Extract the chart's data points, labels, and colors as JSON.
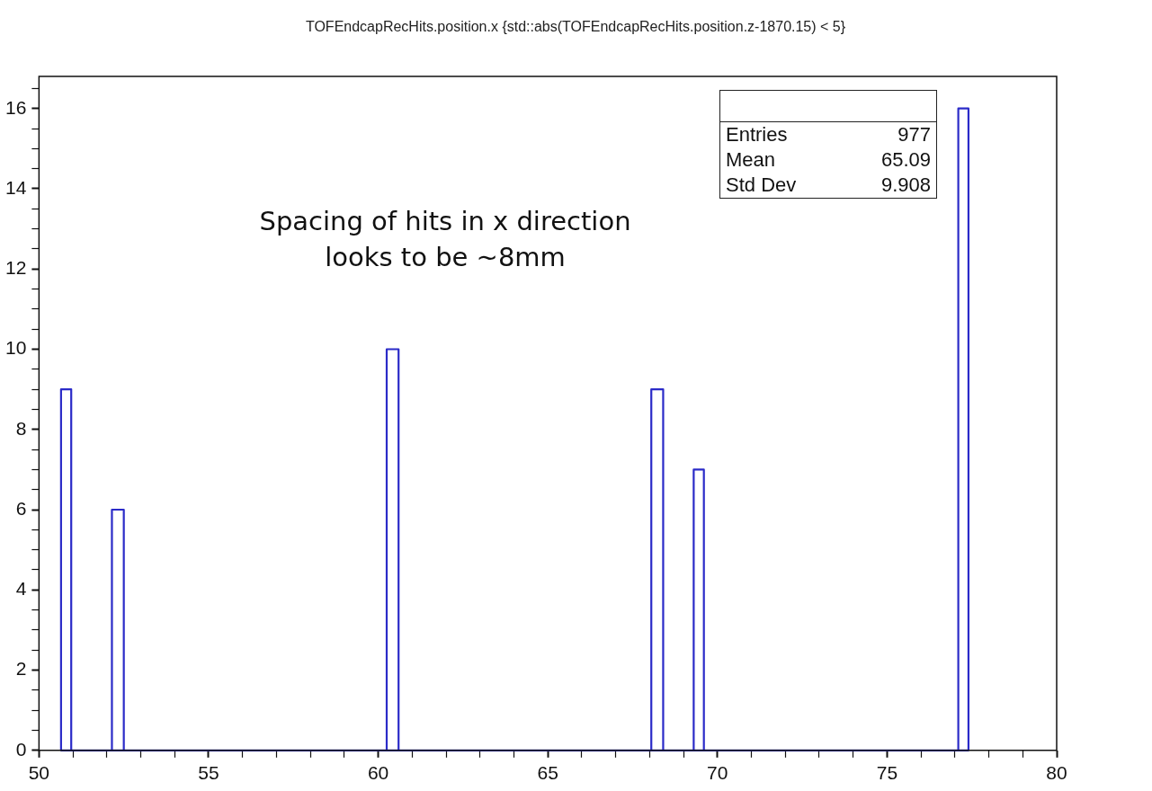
{
  "chart_data": {
    "type": "histogram",
    "title": "TOFEndcapRecHits.position.x {std::abs(TOFEndcapRecHits.position.z-1870.15) < 5}",
    "bins": [
      50.65,
      50.95,
      52.15,
      52.5,
      60.25,
      60.6,
      68.05,
      68.4,
      69.3,
      69.6,
      77.1,
      77.4
    ],
    "values": [
      9,
      0,
      6,
      0,
      10,
      0,
      9,
      0,
      7,
      0,
      16
    ],
    "color": "#2b2bc8",
    "xlim": [
      50,
      80
    ],
    "xticks": [
      50,
      {
        "value": 51,
        "label": null
      },
      {
        "value": 52,
        "label": null
      },
      {
        "value": 53,
        "label": null
      },
      {
        "value": 54,
        "label": null
      },
      55,
      {
        "value": 56,
        "label": null
      },
      {
        "value": 57,
        "label": null
      },
      {
        "value": 58,
        "label": null
      },
      {
        "value": 59,
        "label": null
      },
      60,
      {
        "value": 61,
        "label": null
      },
      {
        "value": 62,
        "label": null
      },
      {
        "value": 63,
        "label": null
      },
      {
        "value": 64,
        "label": null
      },
      65,
      {
        "value": 66,
        "label": null
      },
      {
        "value": 67,
        "label": null
      },
      {
        "value": 68,
        "label": null
      },
      {
        "value": 69,
        "label": null
      },
      70,
      {
        "value": 71,
        "label": null
      },
      {
        "value": 72,
        "label": null
      },
      {
        "value": 73,
        "label": null
      },
      {
        "value": 74,
        "label": null
      },
      75,
      {
        "value": 76,
        "label": null
      },
      {
        "value": 77,
        "label": null
      },
      {
        "value": 78,
        "label": null
      },
      {
        "value": 79,
        "label": null
      },
      80
    ],
    "ylim": [
      0,
      16.8
    ],
    "yticks": [
      0,
      {
        "value": 0.5,
        "label": null
      },
      {
        "value": 1,
        "label": null
      },
      {
        "value": 1.5,
        "label": null
      },
      2,
      {
        "value": 2.5,
        "label": null
      },
      {
        "value": 3,
        "label": null
      },
      {
        "value": 3.5,
        "label": null
      },
      4,
      {
        "value": 4.5,
        "label": null
      },
      {
        "value": 5,
        "label": null
      },
      {
        "value": 5.5,
        "label": null
      },
      6,
      {
        "value": 6.5,
        "label": null
      },
      {
        "value": 7,
        "label": null
      },
      {
        "value": 7.5,
        "label": null
      },
      8,
      {
        "value": 8.5,
        "label": null
      },
      {
        "value": 9,
        "label": null
      },
      {
        "value": 9.5,
        "label": null
      },
      10,
      {
        "value": 10.5,
        "label": null
      },
      {
        "value": 11,
        "label": null
      },
      {
        "value": 11.5,
        "label": null
      },
      12,
      {
        "value": 12.5,
        "label": null
      },
      {
        "value": 13,
        "label": null
      },
      {
        "value": 13.5,
        "label": null
      },
      14,
      {
        "value": 14.5,
        "label": null
      },
      {
        "value": 15,
        "label": null
      },
      {
        "value": 15.5,
        "label": null
      },
      16,
      {
        "value": 16.5,
        "label": null
      }
    ],
    "grid": false,
    "legend": false,
    "annotations": [
      "Spacing of hits in x direction looks to be ~8mm",
      "Entries 977",
      "Mean 65.09",
      "Std Dev 9.908"
    ]
  }
}
